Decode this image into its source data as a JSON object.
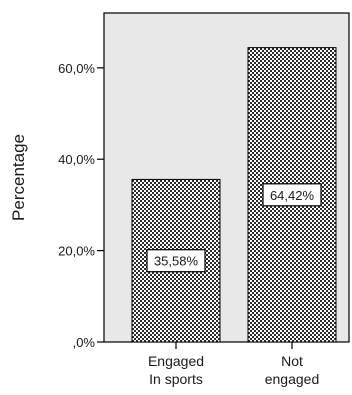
{
  "chart_data": {
    "type": "bar",
    "categories": [
      [
        "Engaged",
        "In sports"
      ],
      [
        "Not",
        "engaged"
      ]
    ],
    "values": [
      35.58,
      64.42
    ],
    "data_labels": [
      "35,58%",
      "64,42%"
    ],
    "ylabel": "Percentage",
    "ylim": [
      0,
      72
    ],
    "yticks": [
      {
        "value": 0,
        "label": ",0%"
      },
      {
        "value": 20,
        "label": "20,0%"
      },
      {
        "value": 40,
        "label": "40,0%"
      },
      {
        "value": 60,
        "label": "60,0%"
      }
    ],
    "grid": false,
    "legend": "none",
    "colors": {
      "plot_background": "#e8e8e8",
      "bar_pattern_fg": "#2b2b2b",
      "bar_pattern_bg": "#ffffff",
      "axis": "#000000"
    }
  }
}
